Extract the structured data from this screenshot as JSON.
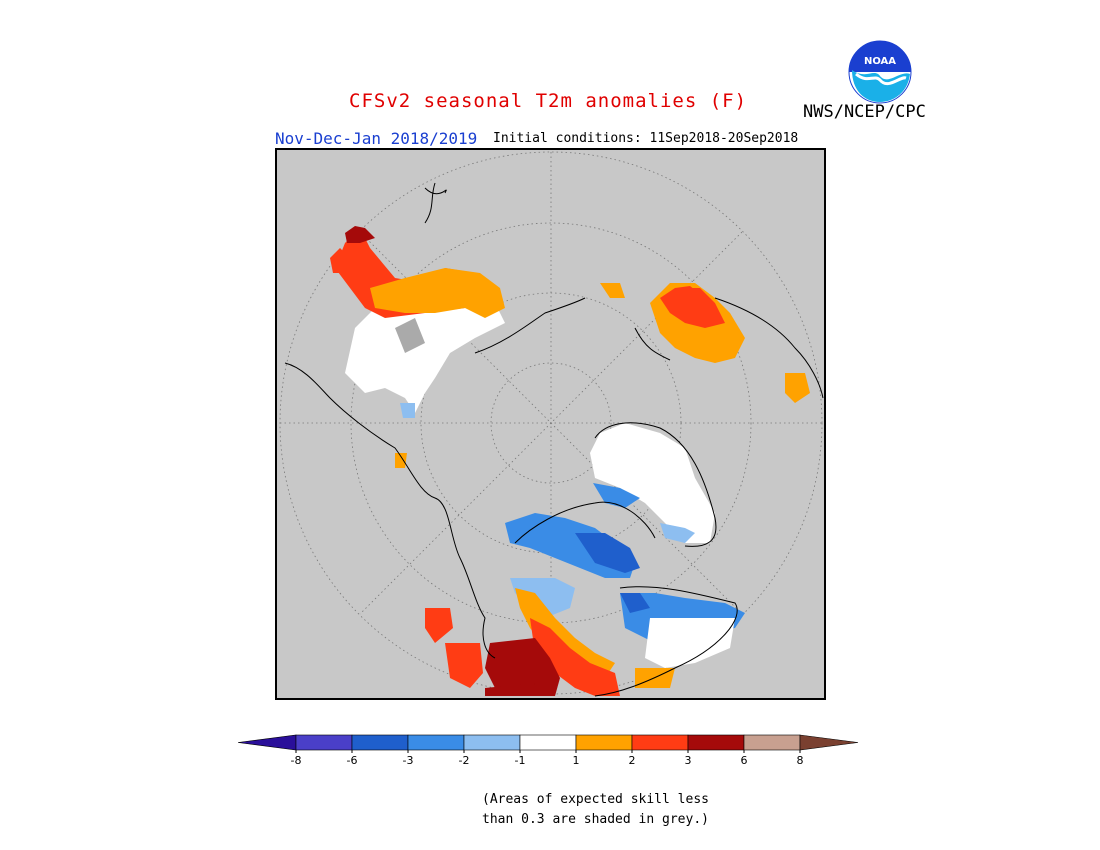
{
  "title": "CFSv2 seasonal T2m anomalies (F)",
  "agency": "NWS/NCEP/CPC",
  "season": "Nov-Dec-Jan 2018/2019",
  "initial_conditions": "Initial conditions: 11Sep2018-20Sep2018",
  "logo_text": "NOAA",
  "colors": {
    "title": "#e00000",
    "season": "#1a3fd0",
    "map_bg": "#c8c8c8",
    "low_skill_grey": "#aaaaaa"
  },
  "legend": {
    "bins": [
      {
        "color": "#2a0f9a",
        "shape": "left-triangle"
      },
      {
        "color": "#4a3fc8"
      },
      {
        "color": "#1f5fcc"
      },
      {
        "color": "#3a8ce6"
      },
      {
        "color": "#8dbef0"
      },
      {
        "color": "#ffffff"
      },
      {
        "color": "#ffa200"
      },
      {
        "color": "#ff3c14"
      },
      {
        "color": "#a50a0a"
      },
      {
        "color": "#c8a090"
      },
      {
        "color": "#7a4030",
        "shape": "right-triangle"
      }
    ],
    "tick_labels": [
      "-8",
      "-6",
      "-3",
      "-2",
      "-1",
      "1",
      "2",
      "3",
      "6",
      "8"
    ]
  },
  "note": {
    "line1": "(Areas of expected skill less",
    "line2": "than 0.3 are shaded in grey.)"
  }
}
